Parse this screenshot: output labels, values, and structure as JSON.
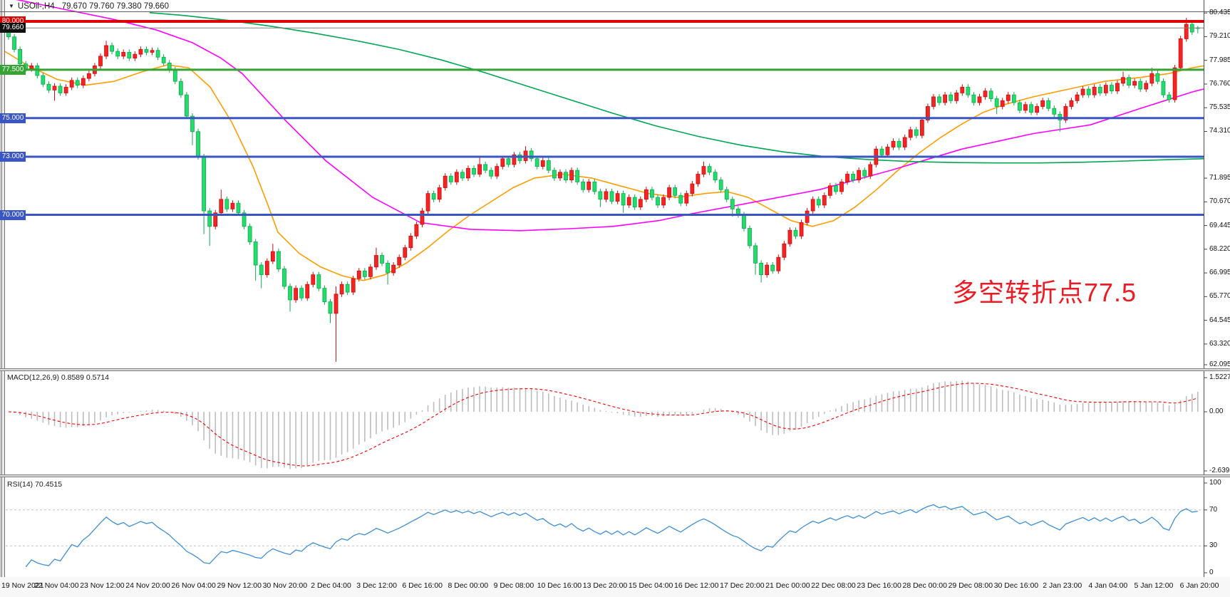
{
  "window": {
    "symbol": "USOil-,H4",
    "ohlc_text": "79.670 79.760 79.380 79.660"
  },
  "annotation": {
    "text": "多空转折点77.5",
    "color": "#ed1c24"
  },
  "macd_panel": {
    "label": "MACD(12,26,9) 0.8589 0.5714",
    "axis": [
      {
        "value": 1.5227,
        "text": "1.5227"
      },
      {
        "value": 0,
        "text": "0.00"
      },
      {
        "value": -2.6392,
        "text": "-2.6392"
      }
    ],
    "histogram_color": "#bdbdbd",
    "signal_color": "#f50000"
  },
  "rsi_panel": {
    "label": "RSI(14) 70.4515",
    "axis": [
      {
        "value": 100,
        "text": "100"
      },
      {
        "value": 70,
        "text": "70"
      },
      {
        "value": 30,
        "text": "30"
      },
      {
        "value": 0,
        "text": "0"
      }
    ],
    "line_color": "#3e8ed6",
    "level_color": "#c4c4c4",
    "levels": [
      70,
      30
    ]
  },
  "time_axis": {
    "labels": [
      "19 Nov 2021",
      "22 Nov 04:00",
      "23 Nov 12:00",
      "24 Nov 20:00",
      "26 Nov 04:00",
      "29 Nov 12:00",
      "30 Nov 20:00",
      "2 Dec 04:00",
      "3 Dec 12:00",
      "6 Dec 16:00",
      "8 Dec 00:00",
      "9 Dec 08:00",
      "10 Dec 16:00",
      "13 Dec 20:00",
      "15 Dec 04:00",
      "16 Dec 12:00",
      "17 Dec 20:00",
      "21 Dec 00:00",
      "22 Dec 08:00",
      "23 Dec 16:00",
      "28 Dec 00:00",
      "29 Dec 08:00",
      "30 Dec 16:00",
      "2 Jan 23:00",
      "4 Jan 04:00",
      "5 Jan 12:00",
      "6 Jan 20:00"
    ]
  },
  "chart_data": {
    "type": "candlestick+indicators",
    "symbol": "USOil",
    "timeframe": "H4",
    "last_bar": {
      "open": 79.67,
      "high": 79.76,
      "low": 79.38,
      "close": 79.66
    },
    "up_color": "#f32424",
    "up_border": "#cc0e0e",
    "down_color": "#22dd6b",
    "down_border": "#0fa94f",
    "current_price_line": {
      "value": 79.66,
      "label": "79.660",
      "color": "#808080",
      "badge_bg": "#111111"
    },
    "y_axis_ticks": [
      80.435,
      79.21,
      77.985,
      76.76,
      75.535,
      74.31,
      71.895,
      70.67,
      69.445,
      68.22,
      66.995,
      65.77,
      64.545,
      63.32,
      62.095
    ],
    "hlines": [
      {
        "value": 80.0,
        "label": "80.000",
        "color": "#dd0000",
        "width": 4
      },
      {
        "value": 77.5,
        "label": "77.500",
        "color": "#36a335",
        "width": 3
      },
      {
        "value": 75.0,
        "label": "75.000",
        "color": "#3a56c4",
        "width": 3
      },
      {
        "value": 73.0,
        "label": "73.000",
        "color": "#3a56c4",
        "width": 3
      },
      {
        "value": 70.0,
        "label": "70.000",
        "color": "#3a56c4",
        "width": 3
      }
    ],
    "candles": {
      "first_open": 79.45,
      "default_wick": 0.15,
      "closes": [
        79.2,
        78.55,
        77.8,
        77.55,
        77.7,
        77.2,
        76.75,
        76.45,
        76.65,
        76.3,
        76.6,
        76.95,
        76.7,
        77.05,
        77.3,
        77.7,
        78.2,
        78.75,
        78.45,
        78.2,
        78.4,
        78.1,
        78.3,
        78.55,
        78.4,
        78.5,
        78.15,
        77.85,
        77.5,
        76.9,
        76.2,
        75.1,
        74.3,
        73.0,
        70.2,
        69.4,
        70.1,
        70.8,
        70.3,
        70.6,
        70.1,
        69.4,
        68.6,
        67.4,
        66.9,
        67.6,
        68.1,
        67.2,
        66.3,
        65.6,
        66.2,
        65.7,
        66.4,
        66.9,
        66.2,
        65.5,
        64.9,
        65.9,
        66.4,
        66.0,
        66.7,
        67.1,
        66.8,
        67.3,
        67.9,
        67.5,
        67.0,
        67.4,
        67.8,
        68.3,
        68.9,
        69.5,
        70.2,
        71.1,
        70.8,
        71.4,
        72.0,
        71.7,
        72.2,
        71.9,
        72.4,
        72.1,
        72.6,
        72.3,
        72.0,
        72.5,
        72.9,
        72.6,
        73.1,
        72.8,
        73.3,
        72.9,
        72.5,
        72.8,
        72.3,
        71.9,
        72.2,
        71.8,
        72.3,
        71.7,
        71.3,
        71.7,
        71.2,
        70.8,
        71.2,
        70.7,
        71.1,
        70.5,
        70.9,
        70.4,
        70.8,
        71.3,
        70.9,
        70.5,
        70.9,
        71.4,
        71.0,
        70.6,
        71.1,
        71.6,
        72.1,
        72.5,
        72.2,
        71.8,
        71.3,
        70.8,
        70.3,
        70.0,
        69.3,
        68.4,
        67.5,
        66.9,
        67.4,
        67.1,
        67.8,
        68.5,
        69.2,
        68.9,
        69.6,
        70.2,
        70.8,
        70.5,
        71.0,
        71.5,
        71.2,
        71.7,
        72.1,
        71.8,
        72.3,
        72.0,
        72.6,
        73.4,
        73.1,
        73.5,
        73.8,
        73.5,
        74.0,
        74.4,
        74.1,
        74.9,
        75.6,
        76.1,
        75.8,
        76.2,
        75.9,
        76.3,
        76.6,
        76.2,
        75.8,
        76.1,
        76.4,
        76.0,
        75.6,
        75.9,
        76.2,
        75.8,
        75.4,
        75.7,
        75.3,
        75.6,
        75.9,
        75.5,
        75.2,
        74.9,
        75.6,
        75.9,
        76.2,
        76.5,
        76.2,
        76.6,
        76.3,
        76.7,
        76.4,
        76.8,
        77.1,
        76.7,
        76.9,
        76.5,
        76.8,
        77.3,
        76.9,
        76.2,
        75.95,
        77.6,
        79.1,
        79.85,
        79.45,
        79.66
      ],
      "open_overrides": {
        "207": 79.67
      },
      "high_overrides": {
        "17": 79.0,
        "37": 71.3,
        "46": 68.5,
        "57": 66.3,
        "64": 68.3,
        "82": 73.0,
        "90": 73.55,
        "121": 72.75,
        "194": 77.4,
        "199": 77.6,
        "205": 80.18,
        "207": 79.76
      },
      "low_overrides": {
        "8": 75.9,
        "32": 73.6,
        "34": 69.0,
        "35": 68.4,
        "43": 66.6,
        "44": 66.2,
        "49": 65.0,
        "56": 64.4,
        "57": 62.4,
        "66": 66.4,
        "103": 70.4,
        "107": 70.1,
        "126": 69.9,
        "130": 66.9,
        "131": 66.5,
        "172": 75.2,
        "183": 74.3,
        "205": 78.95,
        "207": 79.38
      }
    },
    "moving_averages": [
      {
        "name": "fast-ma",
        "color": "#ff9c00",
        "points": [
          [
            0,
            78.6
          ],
          [
            40,
            77.7
          ],
          [
            80,
            77.0
          ],
          [
            120,
            76.7
          ],
          [
            160,
            76.9
          ],
          [
            200,
            77.4
          ],
          [
            235,
            77.75
          ],
          [
            265,
            77.6
          ],
          [
            295,
            76.6
          ],
          [
            325,
            74.8
          ],
          [
            355,
            72.5
          ],
          [
            375,
            70.6
          ],
          [
            390,
            69.1
          ],
          [
            420,
            68.0
          ],
          [
            450,
            67.3
          ],
          [
            480,
            66.85
          ],
          [
            510,
            66.6
          ],
          [
            540,
            66.9
          ],
          [
            570,
            67.5
          ],
          [
            600,
            68.3
          ],
          [
            630,
            69.2
          ],
          [
            660,
            70.0
          ],
          [
            690,
            70.7
          ],
          [
            720,
            71.4
          ],
          [
            750,
            71.9
          ],
          [
            790,
            72.1
          ],
          [
            830,
            71.9
          ],
          [
            870,
            71.5
          ],
          [
            910,
            71.1
          ],
          [
            950,
            70.9
          ],
          [
            990,
            71.1
          ],
          [
            1020,
            71.2
          ],
          [
            1050,
            70.9
          ],
          [
            1080,
            70.3
          ],
          [
            1110,
            69.7
          ],
          [
            1140,
            69.4
          ],
          [
            1170,
            69.7
          ],
          [
            1200,
            70.4
          ],
          [
            1230,
            71.3
          ],
          [
            1260,
            72.3
          ],
          [
            1290,
            73.2
          ],
          [
            1320,
            74.0
          ],
          [
            1350,
            74.7
          ],
          [
            1380,
            75.3
          ],
          [
            1410,
            75.7
          ],
          [
            1450,
            76.1
          ],
          [
            1500,
            76.5
          ],
          [
            1550,
            76.9
          ],
          [
            1600,
            77.1
          ],
          [
            1640,
            77.3
          ],
          [
            1673,
            77.6
          ],
          [
            1689,
            77.7
          ]
        ]
      },
      {
        "name": "medium-ma",
        "color": "#ff00ff",
        "points": [
          [
            0,
            81.3
          ],
          [
            80,
            80.7
          ],
          [
            160,
            80.1
          ],
          [
            220,
            79.55
          ],
          [
            270,
            78.9
          ],
          [
            310,
            78.1
          ],
          [
            340,
            77.3
          ],
          [
            370,
            76.1
          ],
          [
            400,
            74.9
          ],
          [
            457,
            72.8
          ],
          [
            523,
            70.9
          ],
          [
            590,
            69.6
          ],
          [
            660,
            69.25
          ],
          [
            730,
            69.18
          ],
          [
            800,
            69.28
          ],
          [
            860,
            69.4
          ],
          [
            925,
            69.7
          ],
          [
            970,
            70.05
          ],
          [
            1050,
            70.6
          ],
          [
            1150,
            71.3
          ],
          [
            1250,
            72.3
          ],
          [
            1350,
            73.4
          ],
          [
            1450,
            74.2
          ],
          [
            1530,
            74.65
          ],
          [
            1600,
            75.5
          ],
          [
            1673,
            76.35
          ],
          [
            1689,
            76.5
          ]
        ]
      },
      {
        "name": "slow-ma",
        "color": "#00a651",
        "points": [
          [
            210,
            80.45
          ],
          [
            260,
            80.3
          ],
          [
            320,
            80.05
          ],
          [
            380,
            79.75
          ],
          [
            440,
            79.4
          ],
          [
            500,
            79.0
          ],
          [
            560,
            78.55
          ],
          [
            620,
            78.0
          ],
          [
            680,
            77.35
          ],
          [
            740,
            76.65
          ],
          [
            800,
            75.95
          ],
          [
            860,
            75.25
          ],
          [
            920,
            74.6
          ],
          [
            980,
            74.05
          ],
          [
            1040,
            73.6
          ],
          [
            1100,
            73.25
          ],
          [
            1160,
            73.0
          ],
          [
            1220,
            72.85
          ],
          [
            1280,
            72.75
          ],
          [
            1340,
            72.7
          ],
          [
            1400,
            72.68
          ],
          [
            1460,
            72.68
          ],
          [
            1520,
            72.72
          ],
          [
            1580,
            72.78
          ],
          [
            1640,
            72.85
          ],
          [
            1689,
            72.9
          ]
        ]
      }
    ],
    "macd": {
      "fast": 12,
      "slow": 26,
      "signal": 9
    },
    "rsi": {
      "period": 14
    }
  }
}
